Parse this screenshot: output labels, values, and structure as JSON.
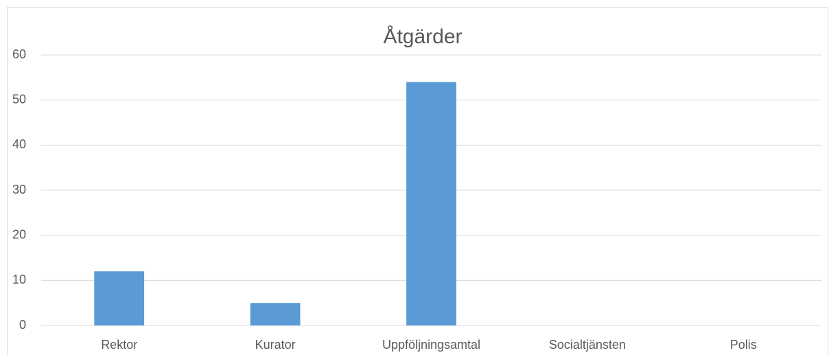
{
  "chart_data": {
    "type": "bar",
    "title": "Åtgärder",
    "categories": [
      "Rektor",
      "Kurator",
      "Uppföljningsamtal",
      "Socialtjänsten",
      "Polis"
    ],
    "values": [
      12,
      5,
      54,
      0,
      0
    ],
    "color": "#5b9bd5",
    "ylim": [
      0,
      60
    ],
    "yticks": [
      0,
      10,
      20,
      30,
      40,
      50,
      60
    ],
    "grid": true
  }
}
